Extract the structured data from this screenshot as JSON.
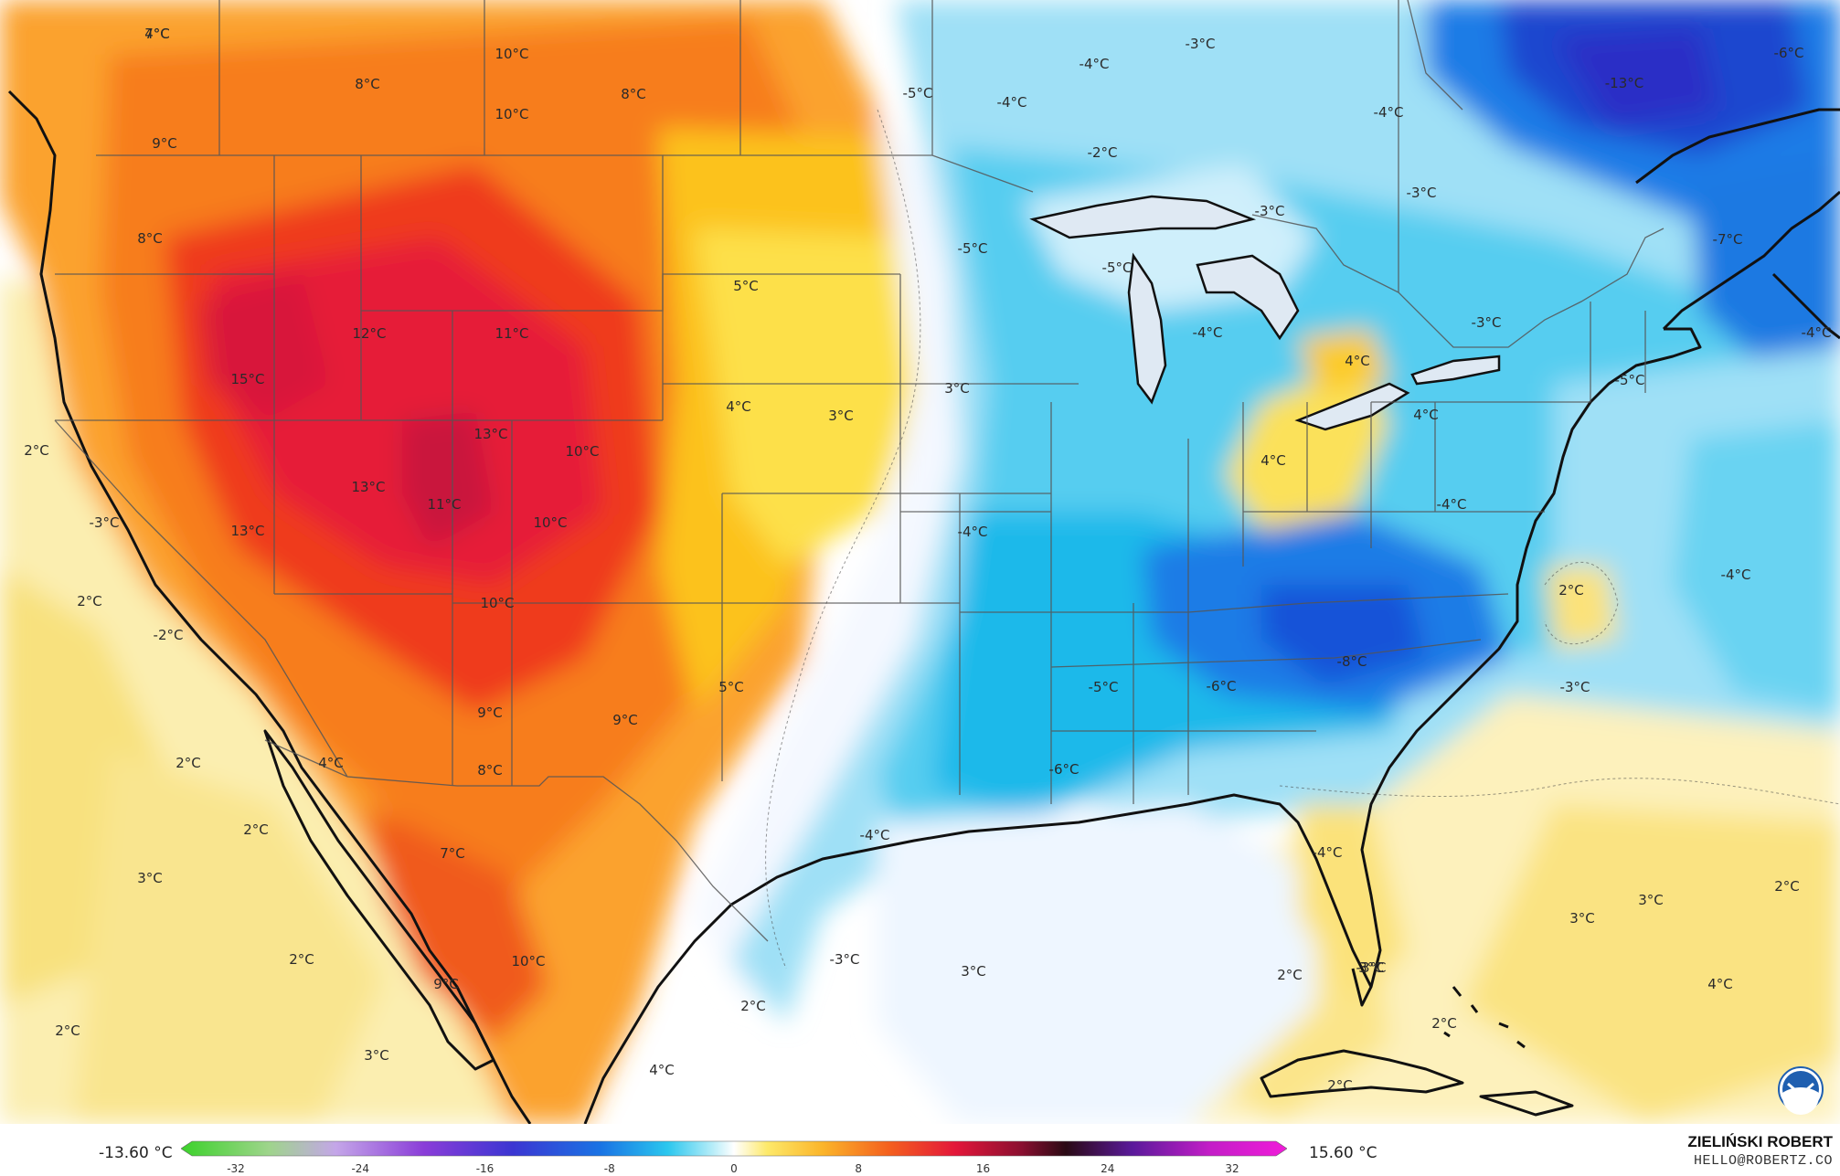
{
  "colors": {
    "ocean": "#ffffff",
    "land_boundary": "#111111",
    "state_line": "#444444",
    "noaa_blue": "#1f5fb0"
  },
  "legend": {
    "min_label": "-13.60 °C",
    "max_label": "15.60 °C",
    "ticks": [
      "-32",
      "-24",
      "-16",
      "-8",
      "0",
      "8",
      "16",
      "24",
      "32"
    ]
  },
  "credit": {
    "author": "ZIELIŃSKI ROBERT",
    "email": "HELLO@ROBERTZ.CO"
  },
  "logo": {
    "text": "NOAA",
    "icon": "noaa-logo-icon"
  },
  "temperature_labels": [
    {
      "text": "7°C",
      "value": 7
    },
    {
      "text": "10°C",
      "value": 10
    },
    {
      "text": "8°C",
      "value": 8
    },
    {
      "text": "8°C",
      "value": 8
    },
    {
      "text": "10°C",
      "value": 10
    },
    {
      "text": "9°C",
      "value": 9
    },
    {
      "text": "8°C",
      "value": 8
    },
    {
      "text": "12°C",
      "value": 12
    },
    {
      "text": "15°C",
      "value": 15
    },
    {
      "text": "11°C",
      "value": 11
    },
    {
      "text": "13°C",
      "value": 13
    },
    {
      "text": "10°C",
      "value": 10
    },
    {
      "text": "13°C",
      "value": 13
    },
    {
      "text": "11°C",
      "value": 11
    },
    {
      "text": "10°C",
      "value": 10
    },
    {
      "text": "13°C",
      "value": 13
    },
    {
      "text": "10°C",
      "value": 10
    },
    {
      "text": "5°C",
      "value": 5
    },
    {
      "text": "4°C",
      "value": 4
    },
    {
      "text": "3°C",
      "value": 3
    },
    {
      "text": "3°C",
      "value": 3
    },
    {
      "text": "2°C",
      "value": 2
    },
    {
      "text": "-3°C",
      "value": -3
    },
    {
      "text": "2°C",
      "value": 2
    },
    {
      "text": "-2°C",
      "value": -2
    },
    {
      "text": "9°C",
      "value": 9
    },
    {
      "text": "9°C",
      "value": 9
    },
    {
      "text": "5°C",
      "value": 5
    },
    {
      "text": "8°C",
      "value": 8
    },
    {
      "text": "2°C",
      "value": 2
    },
    {
      "text": "4°C",
      "value": 4
    },
    {
      "text": "2°C",
      "value": 2
    },
    {
      "text": "3°C",
      "value": 3
    },
    {
      "text": "7°C",
      "value": 7
    },
    {
      "text": "2°C",
      "value": 2
    },
    {
      "text": "2°C",
      "value": 2
    },
    {
      "text": "3°C",
      "value": 3
    },
    {
      "text": "9°C",
      "value": 9
    },
    {
      "text": "10°C",
      "value": 10
    },
    {
      "text": "2°C",
      "value": 2
    },
    {
      "text": "4°C",
      "value": 4
    },
    {
      "text": "-4°C",
      "value": -4
    },
    {
      "text": "-5°C",
      "value": -5
    },
    {
      "text": "-4°C",
      "value": -4
    },
    {
      "text": "-3°C",
      "value": -3
    },
    {
      "text": "-2°C",
      "value": -2
    },
    {
      "text": "-5°C",
      "value": -5
    },
    {
      "text": "-5°C",
      "value": -5
    },
    {
      "text": "-3°C",
      "value": -3
    },
    {
      "text": "-4°C",
      "value": -4
    },
    {
      "text": "-3°C",
      "value": -3
    },
    {
      "text": "-4°C",
      "value": -4
    },
    {
      "text": "-13°C",
      "value": -13
    },
    {
      "text": "-6°C",
      "value": -6
    },
    {
      "text": "-7°C",
      "value": -7
    },
    {
      "text": "-3°C",
      "value": -3
    },
    {
      "text": "-4°C",
      "value": -4
    },
    {
      "text": "-5°C",
      "value": -5
    },
    {
      "text": "4°C",
      "value": 4
    },
    {
      "text": "4°C",
      "value": 4
    },
    {
      "text": "4°C",
      "value": 4
    },
    {
      "text": "-4°C",
      "value": -4
    },
    {
      "text": "-4°C",
      "value": -4
    },
    {
      "text": "-5°C",
      "value": -5
    },
    {
      "text": "-6°C",
      "value": -6
    },
    {
      "text": "-8°C",
      "value": -8
    },
    {
      "text": "-6°C",
      "value": -6
    },
    {
      "text": "-4°C",
      "value": -4
    },
    {
      "text": "-3°C",
      "value": -3
    },
    {
      "text": "-4°C",
      "value": -4
    },
    {
      "text": "2°C",
      "value": 2
    },
    {
      "text": "-3°C",
      "value": -3
    },
    {
      "text": "-4°C",
      "value": -4
    },
    {
      "text": "3°C",
      "value": 3
    },
    {
      "text": "2°C",
      "value": 2
    },
    {
      "text": "3°C",
      "value": 3
    },
    {
      "text": "2°C",
      "value": 2
    },
    {
      "text": "3°C",
      "value": 3
    },
    {
      "text": "4°C",
      "value": 4
    },
    {
      "text": "2°C",
      "value": 2
    },
    {
      "text": "3°C",
      "value": 3
    },
    {
      "text": "2°C",
      "value": 2
    },
    {
      "text": "-3°C",
      "value": -3
    },
    {
      "text": "4°C",
      "value": 4
    }
  ]
}
